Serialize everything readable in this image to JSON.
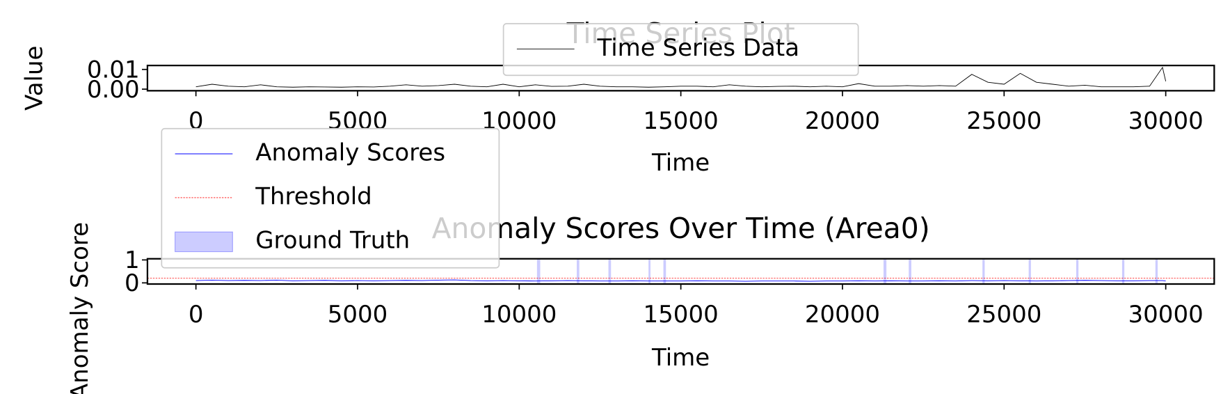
{
  "chart_data": [
    {
      "type": "line",
      "title": "Time Series Plot",
      "x_label": "Time",
      "y_label": "Value",
      "x": [
        0,
        500,
        1000,
        1500,
        2000,
        2500,
        3000,
        3500,
        4000,
        4500,
        5000,
        5500,
        6000,
        6500,
        7000,
        7500,
        8000,
        8500,
        9000,
        9500,
        10000,
        10500,
        11000,
        11500,
        12000,
        12500,
        13000,
        13500,
        14000,
        14500,
        15000,
        15500,
        16000,
        16500,
        17000,
        17500,
        18000,
        18500,
        19000,
        19500,
        20000,
        20500,
        21000,
        21500,
        22000,
        22500,
        23000,
        23500,
        24000,
        24500,
        25000,
        25500,
        26000,
        26500,
        27000,
        27500,
        28000,
        28500,
        29000,
        29500,
        29900,
        30000
      ],
      "series": [
        {
          "name": "Time Series Data",
          "color": "#000000",
          "values": [
            0.0012,
            0.0025,
            0.0015,
            0.0012,
            0.0022,
            0.0012,
            0.001,
            0.0012,
            0.0011,
            0.001,
            0.0012,
            0.0011,
            0.0015,
            0.0022,
            0.0015,
            0.0018,
            0.0025,
            0.0015,
            0.0012,
            0.0025,
            0.0012,
            0.0022,
            0.0014,
            0.0015,
            0.0025,
            0.0015,
            0.0012,
            0.0012,
            0.001,
            0.0012,
            0.0015,
            0.0015,
            0.0012,
            0.0022,
            0.0015,
            0.0012,
            0.0014,
            0.0015,
            0.0012,
            0.0015,
            0.0012,
            0.0028,
            0.0015,
            0.0015,
            0.0018,
            0.0015,
            0.0018,
            0.0015,
            0.0075,
            0.0035,
            0.0025,
            0.008,
            0.0035,
            0.0025,
            0.0015,
            0.002,
            0.0012,
            0.0012,
            0.0012,
            0.0015,
            0.011,
            0.004
          ]
        }
      ],
      "xlim": [
        -1500,
        31500
      ],
      "xticks": [
        0,
        5000,
        10000,
        15000,
        20000,
        25000,
        30000
      ],
      "ylim": [
        -0.0008,
        0.012
      ],
      "yticks": [
        {
          "value": 0,
          "label": "0.00"
        },
        {
          "value": 0.01,
          "label": "0.01"
        }
      ],
      "grid": false,
      "legend": "upper center"
    },
    {
      "type": "line",
      "title": "Anomaly Scores Over Time (Area0)",
      "x_label": "Time",
      "y_label": "Anomaly Score",
      "x": [
        0,
        500,
        1000,
        1500,
        2000,
        2500,
        3000,
        3500,
        4000,
        4500,
        5000,
        5500,
        6000,
        6500,
        7000,
        7500,
        8000,
        8500,
        9000,
        9500,
        10000,
        10500,
        11000,
        11500,
        12000,
        12500,
        13000,
        13500,
        14000,
        14500,
        15000,
        15500,
        16000,
        16500,
        17000,
        17500,
        18000,
        18500,
        19000,
        19500,
        20000,
        20500,
        21000,
        21500,
        22000,
        22500,
        23000,
        23500,
        24000,
        24500,
        25000,
        25500,
        26000,
        26500,
        27000,
        27500,
        28000,
        28500,
        29000,
        29500,
        29900,
        30000
      ],
      "series": [
        {
          "name": "Anomaly Scores",
          "color": "#0000ff",
          "values": [
            0.1,
            0.12,
            0.1,
            0.11,
            0.1,
            0.12,
            0.09,
            0.1,
            0.11,
            0.09,
            0.1,
            0.09,
            0.1,
            0.11,
            0.1,
            0.12,
            0.13,
            0.1,
            0.09,
            0.1,
            0.09,
            0.08,
            0.09,
            0.1,
            0.09,
            0.08,
            0.08,
            0.09,
            0.08,
            0.08,
            0.08,
            0.09,
            0.08,
            0.08,
            0.07,
            0.08,
            0.08,
            0.08,
            0.07,
            0.08,
            0.08,
            0.09,
            0.08,
            0.09,
            0.08,
            0.08,
            0.09,
            0.08,
            0.1,
            0.09,
            0.1,
            0.09,
            0.08,
            0.09,
            0.1,
            0.11,
            0.1,
            0.09,
            0.09,
            0.1,
            0.1,
            0.08
          ]
        }
      ],
      "threshold": {
        "name": "Threshold",
        "value": 0.2,
        "color": "#ff0000"
      },
      "spans": {
        "name": "Ground Truth",
        "color": "#0000ff",
        "ranges": [
          [
            10550,
            10650
          ],
          [
            11780,
            11860
          ],
          [
            12760,
            12840
          ],
          [
            14000,
            14060
          ],
          [
            14460,
            14540
          ],
          [
            21270,
            21360
          ],
          [
            22050,
            22130
          ],
          [
            24330,
            24400
          ],
          [
            25760,
            25830
          ],
          [
            27230,
            27300
          ],
          [
            28650,
            28720
          ],
          [
            29680,
            29750
          ]
        ]
      },
      "xlim": [
        -1500,
        31500
      ],
      "xticks": [
        0,
        5000,
        10000,
        15000,
        20000,
        25000,
        30000
      ],
      "ylim": [
        -0.05,
        1.05
      ],
      "yticks": [
        0,
        1
      ],
      "grid": false,
      "legend": "upper left"
    }
  ]
}
